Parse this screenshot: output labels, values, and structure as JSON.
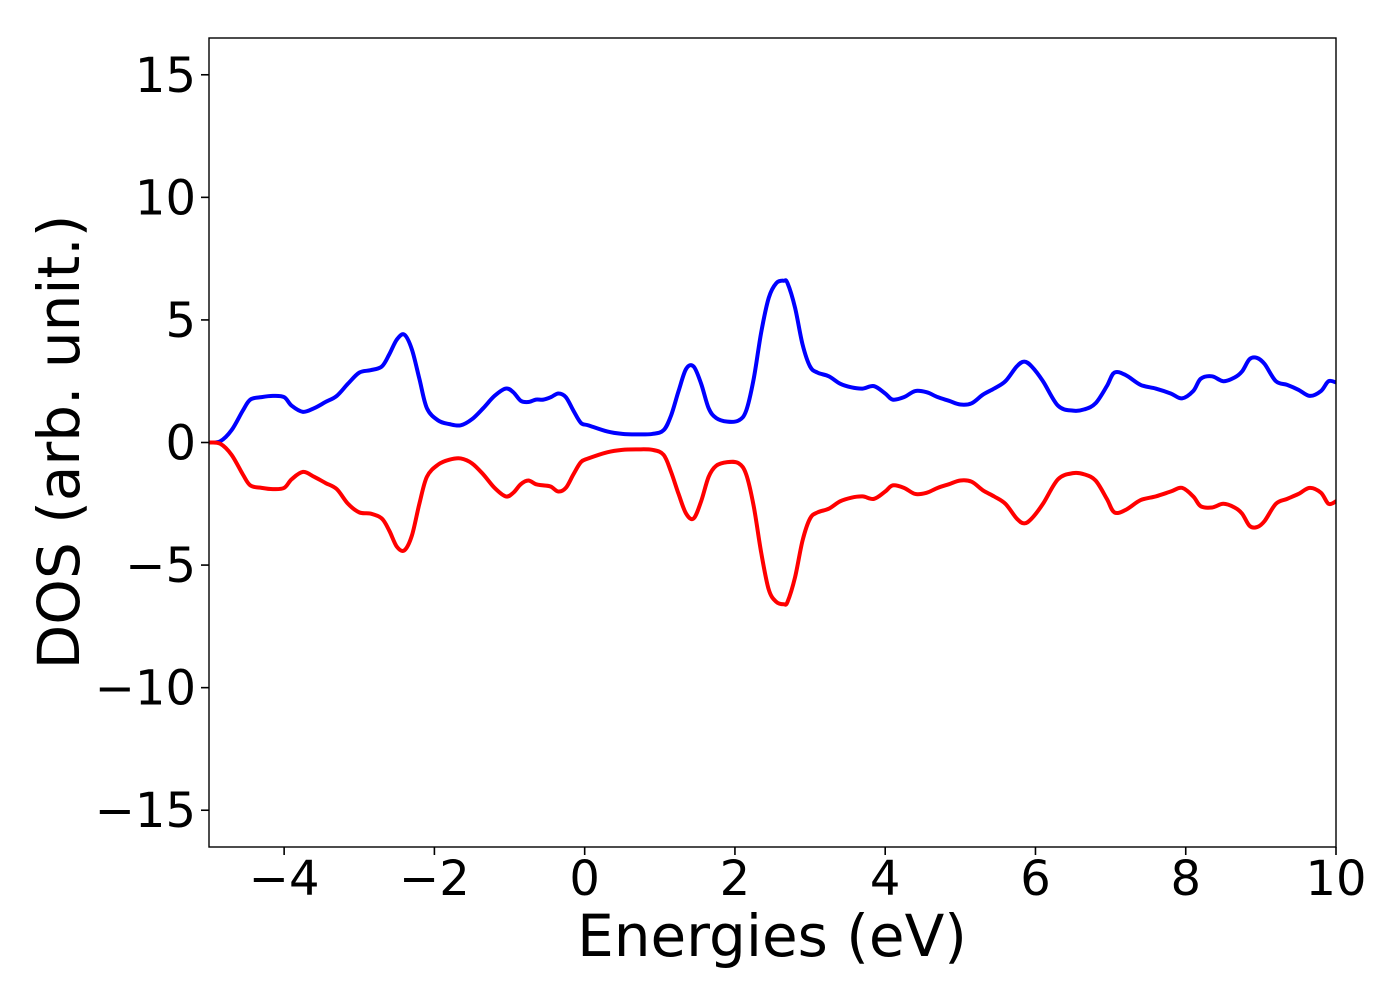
{
  "chart_data": {
    "type": "line",
    "title": "",
    "xlabel": "Energies (eV)",
    "ylabel": "DOS (arb. unit.)",
    "xlim": [
      -5,
      10
    ],
    "ylim": [
      -16.5,
      16.5
    ],
    "xticks": [
      -4,
      -2,
      0,
      2,
      4,
      6,
      8,
      10
    ],
    "xtick_labels": [
      "−4",
      "−2",
      "0",
      "2",
      "4",
      "6",
      "8",
      "10"
    ],
    "yticks": [
      15,
      10,
      5,
      0,
      -5,
      -10,
      -15
    ],
    "ytick_labels": [
      "15",
      "10",
      "5",
      "0",
      "−5",
      "−10",
      "−15"
    ],
    "grid": false,
    "legend": false,
    "series": [
      {
        "color": "#0000ff",
        "x": [
          -5.0,
          -4.85,
          -4.7,
          -4.55,
          -4.45,
          -4.3,
          -4.15,
          -4.0,
          -3.9,
          -3.75,
          -3.6,
          -3.45,
          -3.3,
          -3.15,
          -3.0,
          -2.85,
          -2.7,
          -2.6,
          -2.5,
          -2.4,
          -2.3,
          -2.2,
          -2.1,
          -1.95,
          -1.8,
          -1.65,
          -1.5,
          -1.35,
          -1.2,
          -1.05,
          -0.95,
          -0.85,
          -0.75,
          -0.65,
          -0.55,
          -0.45,
          -0.35,
          -0.25,
          -0.15,
          -0.05,
          0.05,
          0.3,
          0.5,
          0.7,
          0.9,
          1.05,
          1.15,
          1.25,
          1.35,
          1.45,
          1.55,
          1.65,
          1.75,
          1.9,
          2.05,
          2.15,
          2.25,
          2.35,
          2.45,
          2.55,
          2.65,
          2.7,
          2.8,
          2.9,
          3.0,
          3.1,
          3.25,
          3.4,
          3.55,
          3.7,
          3.85,
          4.0,
          4.1,
          4.25,
          4.4,
          4.55,
          4.7,
          4.85,
          5.0,
          5.15,
          5.3,
          5.45,
          5.6,
          5.75,
          5.85,
          5.95,
          6.1,
          6.3,
          6.5,
          6.65,
          6.8,
          6.95,
          7.05,
          7.2,
          7.4,
          7.6,
          7.8,
          7.95,
          8.1,
          8.2,
          8.35,
          8.5,
          8.65,
          8.75,
          8.85,
          8.95,
          9.05,
          9.2,
          9.35,
          9.5,
          9.65,
          9.8,
          9.9,
          10.0
        ],
        "y": [
          0.0,
          0.05,
          0.5,
          1.3,
          1.75,
          1.85,
          1.9,
          1.85,
          1.5,
          1.25,
          1.4,
          1.65,
          1.9,
          2.4,
          2.85,
          2.95,
          3.1,
          3.6,
          4.2,
          4.4,
          3.8,
          2.6,
          1.4,
          0.9,
          0.75,
          0.7,
          0.95,
          1.4,
          1.9,
          2.2,
          2.05,
          1.7,
          1.65,
          1.75,
          1.75,
          1.85,
          2.0,
          1.85,
          1.3,
          0.8,
          0.7,
          0.45,
          0.35,
          0.33,
          0.35,
          0.5,
          1.1,
          2.1,
          3.0,
          3.1,
          2.4,
          1.4,
          1.0,
          0.85,
          0.9,
          1.3,
          2.6,
          4.5,
          5.9,
          6.5,
          6.6,
          6.5,
          5.5,
          4.0,
          3.1,
          2.85,
          2.7,
          2.4,
          2.25,
          2.2,
          2.3,
          2.0,
          1.75,
          1.85,
          2.1,
          2.05,
          1.85,
          1.7,
          1.55,
          1.6,
          1.95,
          2.2,
          2.5,
          3.1,
          3.3,
          3.1,
          2.5,
          1.5,
          1.3,
          1.35,
          1.6,
          2.3,
          2.85,
          2.75,
          2.35,
          2.2,
          2.0,
          1.8,
          2.1,
          2.6,
          2.7,
          2.5,
          2.65,
          2.9,
          3.4,
          3.45,
          3.2,
          2.5,
          2.35,
          2.15,
          1.9,
          2.1,
          2.5,
          2.45
        ]
      },
      {
        "color": "#ff0000",
        "x": [
          -5.0,
          -4.85,
          -4.7,
          -4.55,
          -4.45,
          -4.3,
          -4.15,
          -4.0,
          -3.9,
          -3.75,
          -3.6,
          -3.45,
          -3.3,
          -3.15,
          -3.0,
          -2.85,
          -2.7,
          -2.6,
          -2.5,
          -2.4,
          -2.3,
          -2.2,
          -2.1,
          -1.95,
          -1.8,
          -1.65,
          -1.5,
          -1.35,
          -1.2,
          -1.05,
          -0.95,
          -0.85,
          -0.75,
          -0.65,
          -0.55,
          -0.45,
          -0.35,
          -0.25,
          -0.15,
          -0.05,
          0.05,
          0.3,
          0.5,
          0.7,
          0.9,
          1.05,
          1.15,
          1.25,
          1.35,
          1.45,
          1.55,
          1.65,
          1.75,
          1.9,
          2.05,
          2.15,
          2.25,
          2.35,
          2.45,
          2.55,
          2.65,
          2.7,
          2.8,
          2.9,
          3.0,
          3.1,
          3.25,
          3.4,
          3.55,
          3.7,
          3.85,
          4.0,
          4.1,
          4.25,
          4.4,
          4.55,
          4.7,
          4.85,
          5.0,
          5.15,
          5.3,
          5.45,
          5.6,
          5.75,
          5.85,
          5.95,
          6.1,
          6.3,
          6.5,
          6.65,
          6.8,
          6.95,
          7.05,
          7.2,
          7.4,
          7.6,
          7.8,
          7.95,
          8.1,
          8.2,
          8.35,
          8.5,
          8.65,
          8.75,
          8.85,
          8.95,
          9.05,
          9.2,
          9.35,
          9.5,
          9.65,
          9.8,
          9.9,
          10.0
        ],
        "y": [
          0.0,
          -0.05,
          -0.5,
          -1.3,
          -1.75,
          -1.85,
          -1.9,
          -1.85,
          -1.5,
          -1.2,
          -1.4,
          -1.65,
          -1.9,
          -2.5,
          -2.85,
          -2.9,
          -3.1,
          -3.6,
          -4.25,
          -4.4,
          -3.8,
          -2.5,
          -1.4,
          -0.9,
          -0.7,
          -0.65,
          -0.85,
          -1.3,
          -1.85,
          -2.2,
          -2.05,
          -1.7,
          -1.55,
          -1.7,
          -1.75,
          -1.8,
          -2.0,
          -1.85,
          -1.3,
          -0.8,
          -0.65,
          -0.4,
          -0.3,
          -0.28,
          -0.3,
          -0.5,
          -1.2,
          -2.1,
          -2.9,
          -3.1,
          -2.4,
          -1.4,
          -0.95,
          -0.8,
          -0.85,
          -1.3,
          -2.6,
          -4.5,
          -6.0,
          -6.5,
          -6.6,
          -6.5,
          -5.5,
          -4.0,
          -3.1,
          -2.85,
          -2.7,
          -2.4,
          -2.25,
          -2.2,
          -2.3,
          -2.0,
          -1.75,
          -1.85,
          -2.1,
          -2.05,
          -1.85,
          -1.7,
          -1.55,
          -1.6,
          -1.95,
          -2.2,
          -2.5,
          -3.1,
          -3.3,
          -3.1,
          -2.5,
          -1.5,
          -1.25,
          -1.3,
          -1.55,
          -2.3,
          -2.85,
          -2.75,
          -2.35,
          -2.2,
          -2.0,
          -1.85,
          -2.2,
          -2.6,
          -2.65,
          -2.5,
          -2.65,
          -2.9,
          -3.4,
          -3.45,
          -3.2,
          -2.5,
          -2.3,
          -2.1,
          -1.85,
          -2.05,
          -2.5,
          -2.4
        ]
      }
    ]
  }
}
